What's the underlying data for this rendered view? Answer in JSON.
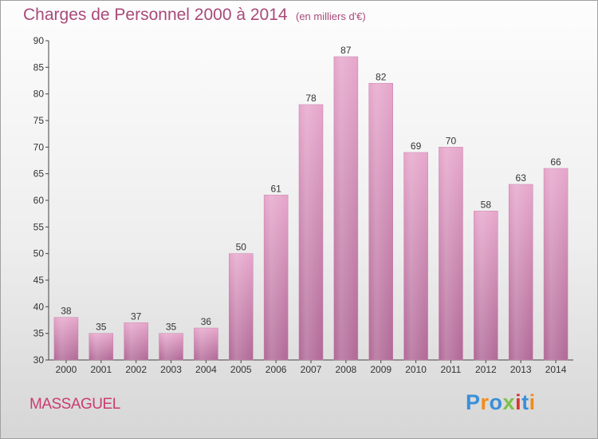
{
  "title": "Charges de Personnel 2000 à 2014",
  "subtitle": "(en milliers d'€)",
  "commune": "MASSAGUEL",
  "brand": {
    "letters": [
      "P",
      "r",
      "o",
      "x",
      "i",
      "t",
      "i"
    ],
    "colors": [
      "#3a8fd8",
      "#f08c1a",
      "#3a8fd8",
      "#7cc04a",
      "#e03030",
      "#3a8fd8",
      "#f08c1a"
    ]
  },
  "chart_data": {
    "type": "bar",
    "categories": [
      "2000",
      "2001",
      "2002",
      "2003",
      "2004",
      "2005",
      "2006",
      "2007",
      "2008",
      "2009",
      "2010",
      "2011",
      "2012",
      "2013",
      "2014"
    ],
    "values": [
      38,
      35,
      37,
      35,
      36,
      50,
      61,
      78,
      87,
      82,
      69,
      70,
      58,
      63,
      66
    ],
    "ylim": [
      30,
      90
    ],
    "yticks": [
      30,
      35,
      40,
      45,
      50,
      55,
      60,
      65,
      70,
      75,
      80,
      85,
      90
    ],
    "grid": false,
    "bar_color": "#d88fb8",
    "bar_color_dark": "#b46a98"
  }
}
